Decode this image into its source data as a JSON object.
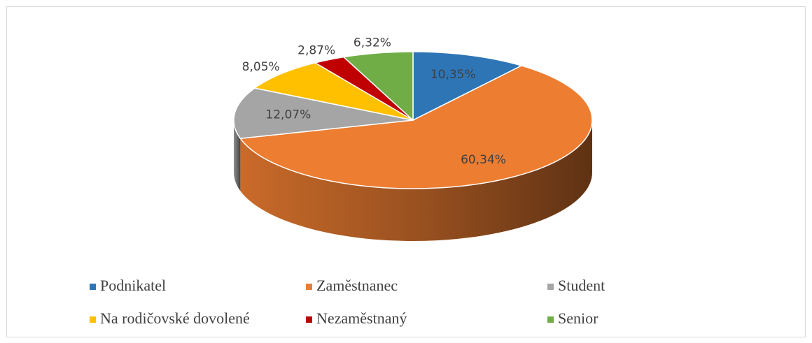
{
  "chart_data": {
    "type": "pie",
    "categories": [
      "Podnikatel",
      "Zaměstnanec",
      "Student",
      "Na rodičovské  dovolené",
      "Nezaměstnaný",
      "Senior"
    ],
    "values": [
      10.35,
      60.34,
      12.07,
      8.05,
      2.87,
      6.32
    ],
    "value_labels": [
      "10,35%",
      "60,34%",
      "12,07%",
      "8,05%",
      "2,87%",
      "6,32%"
    ],
    "colors": [
      "#2e75b6",
      "#ed7d31",
      "#a5a5a5",
      "#ffc000",
      "#c00000",
      "#70ad47"
    ],
    "legend": "bottom"
  }
}
